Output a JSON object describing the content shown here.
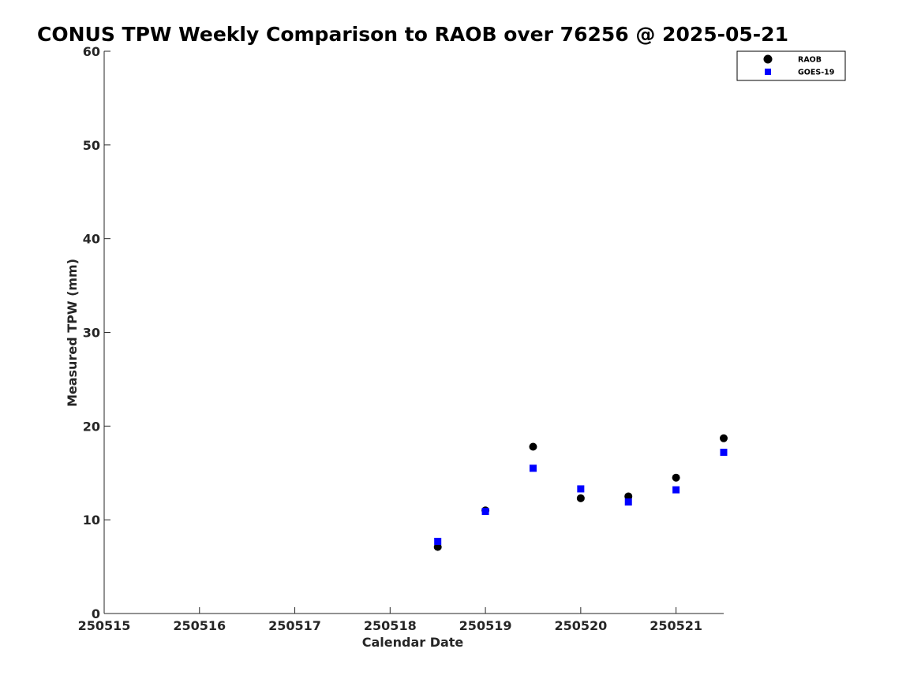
{
  "chart_data": {
    "type": "scatter",
    "title": "CONUS TPW Weekly Comparison to RAOB over 76256 @ 2025-05-21",
    "xlabel": "Calendar Date",
    "ylabel": "Measured TPW (mm)",
    "xlim": [
      0,
      6.5
    ],
    "ylim": [
      0,
      60
    ],
    "x_ticks": [
      0,
      1,
      2,
      3,
      4,
      5,
      6
    ],
    "x_tick_labels": [
      "250515",
      "250516",
      "250517",
      "250518",
      "250519",
      "250520",
      "250521"
    ],
    "y_ticks": [
      0,
      10,
      20,
      30,
      40,
      50,
      60
    ],
    "y_tick_labels": [
      "0",
      "10",
      "20",
      "30",
      "40",
      "50",
      "60"
    ],
    "legend_position": "top-right",
    "series": [
      {
        "name": "RAOB",
        "marker": "circle",
        "color": "#000000",
        "x": [
          3.5,
          4.0,
          4.5,
          5.0,
          5.5,
          6.0,
          6.5
        ],
        "values": [
          7.1,
          11.0,
          17.8,
          12.3,
          12.5,
          14.5,
          18.7
        ]
      },
      {
        "name": "GOES-19",
        "marker": "square",
        "color": "#0000ff",
        "x": [
          3.5,
          4.0,
          4.5,
          5.0,
          5.5,
          6.0,
          6.5
        ],
        "values": [
          7.7,
          10.9,
          15.5,
          13.3,
          11.9,
          13.2,
          17.2
        ]
      }
    ]
  }
}
